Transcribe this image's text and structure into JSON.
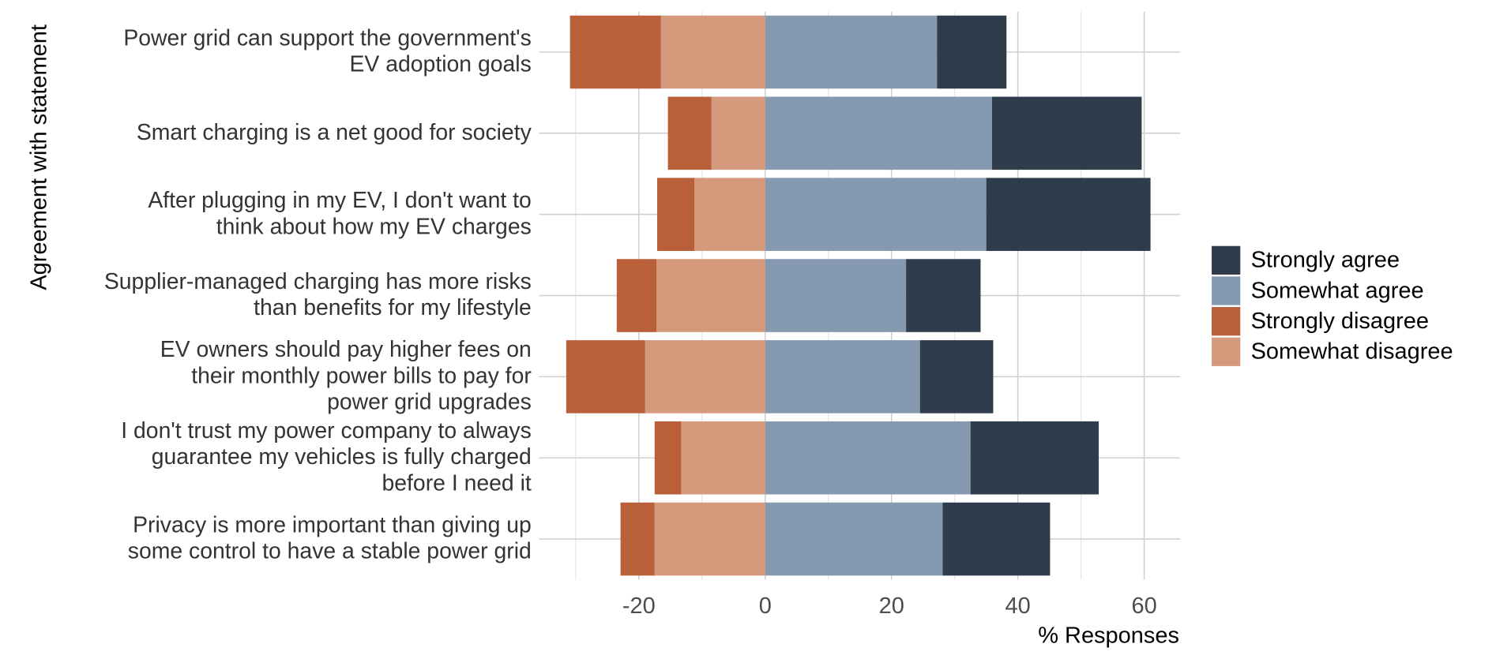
{
  "chart_data": {
    "type": "diverging-bar",
    "x_label": "% Responses",
    "y_label": "Agreement with statement",
    "categories": [
      "Power grid can support the government's\nEV adoption goals",
      "Smart charging is a net good for society",
      "After plugging in my EV, I don't want to\nthink about how my EV charges",
      "Supplier-managed charging has more risks\nthan benefits for my lifestyle",
      "EV owners should pay higher fees on\ntheir monthly power bills to pay for\npower grid upgrades",
      "I don't trust my power company to always\nguarantee my vehicles is fully charged\nbefore I need it",
      "Privacy is more important than giving up\nsome control to have a stable power grid"
    ],
    "series": [
      {
        "name": "Strongly agree",
        "color": "#2f3c4b",
        "values": [
          11.0,
          23.7,
          26.0,
          11.8,
          11.6,
          20.3,
          17.0
        ]
      },
      {
        "name": "Somewhat agree",
        "color": "#8599b0",
        "values": [
          27.2,
          35.9,
          35.0,
          22.3,
          24.5,
          32.5,
          28.1
        ]
      },
      {
        "name": "Strongly disagree",
        "color": "#b9603b",
        "values": [
          -14.4,
          -6.9,
          -5.9,
          -6.3,
          -12.5,
          -4.2,
          -5.4
        ]
      },
      {
        "name": "Somewhat disagree",
        "color": "#d59a7c",
        "values": [
          -16.5,
          -8.5,
          -11.2,
          -17.2,
          -19.0,
          -13.3,
          -17.5
        ]
      }
    ],
    "xlim": [
      -35.8,
      65.7
    ],
    "xticks": [
      -20,
      0,
      20,
      40,
      60
    ],
    "xminor": [
      -30,
      -10,
      10,
      30,
      50
    ],
    "grid": true,
    "legend": "right"
  }
}
